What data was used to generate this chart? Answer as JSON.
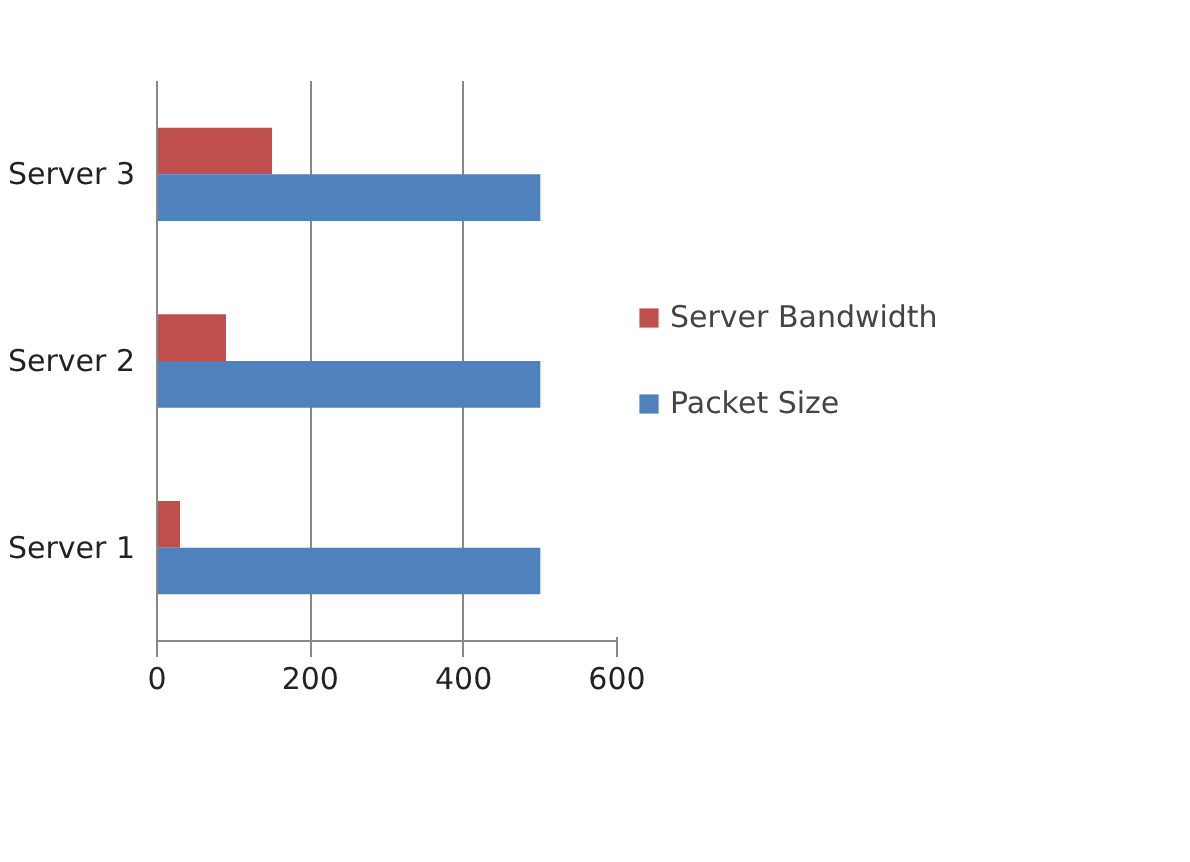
{
  "chart_data": {
    "type": "bar",
    "orientation": "horizontal",
    "categories": [
      "Server 3",
      "Server 2",
      "Server 1"
    ],
    "series": [
      {
        "name": "Server Bandwidth",
        "color": "#c0504d",
        "values": [
          150,
          90,
          30
        ]
      },
      {
        "name": "Packet Size",
        "color": "#4f81bd",
        "values": [
          500,
          500,
          500
        ]
      }
    ],
    "xlim": [
      0,
      600
    ],
    "xticks": [
      0,
      200,
      400,
      600
    ],
    "grid": "x",
    "legend": "right"
  }
}
